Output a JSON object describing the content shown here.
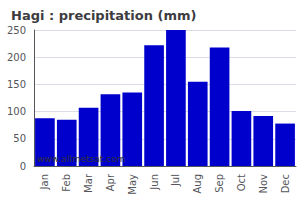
{
  "chart_data": {
    "type": "bar",
    "title": "Hagi : precipitation (mm)",
    "categories": [
      "Jan",
      "Feb",
      "Mar",
      "Apr",
      "May",
      "Jun",
      "Jul",
      "Aug",
      "Sep",
      "Oct",
      "Nov",
      "Dec"
    ],
    "values": [
      88,
      85,
      107,
      132,
      135,
      222,
      250,
      155,
      218,
      101,
      92,
      78
    ],
    "color": "#0000cc",
    "ylim": [
      0,
      250
    ],
    "yticks": [
      0,
      50,
      100,
      150,
      200,
      250
    ],
    "grid": true,
    "annotation": "www.allmetsat.com"
  }
}
